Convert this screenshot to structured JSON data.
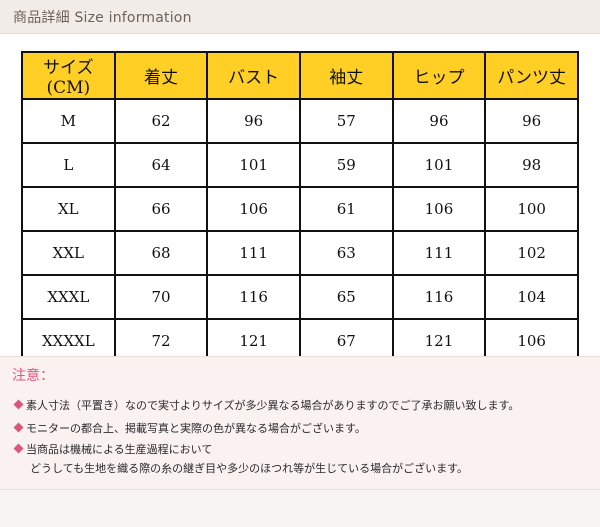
{
  "header": {
    "title": "商品詳細 Size information"
  },
  "size_table": {
    "columns": [
      "サイズ(CM)",
      "着丈",
      "バスト",
      "袖丈",
      "ヒップ",
      "パンツ丈"
    ],
    "rows": [
      [
        "M",
        "62",
        "96",
        "57",
        "96",
        "96"
      ],
      [
        "L",
        "64",
        "101",
        "59",
        "101",
        "98"
      ],
      [
        "XL",
        "66",
        "106",
        "61",
        "106",
        "100"
      ],
      [
        "XXL",
        "68",
        "111",
        "63",
        "111",
        "102"
      ],
      [
        "XXXL",
        "70",
        "116",
        "65",
        "116",
        "104"
      ],
      [
        "XXXXL",
        "72",
        "121",
        "67",
        "121",
        "106"
      ]
    ],
    "header_color": "#ffcf25"
  },
  "notes": {
    "title": "注意：",
    "lines": [
      "素人寸法（平置き）なので実寸よりサイズが多少異なる場合がありますのでご了承お願い致します。",
      "モニターの都合上、掲載写真と実際の色が異なる場合がございます。",
      "当商品は機械による生産過程において",
      "どうしても生地を織る際の糸の継ぎ目や多少のほつれ等が生じている場合がございます。"
    ],
    "accent_color": "#e0587d"
  }
}
